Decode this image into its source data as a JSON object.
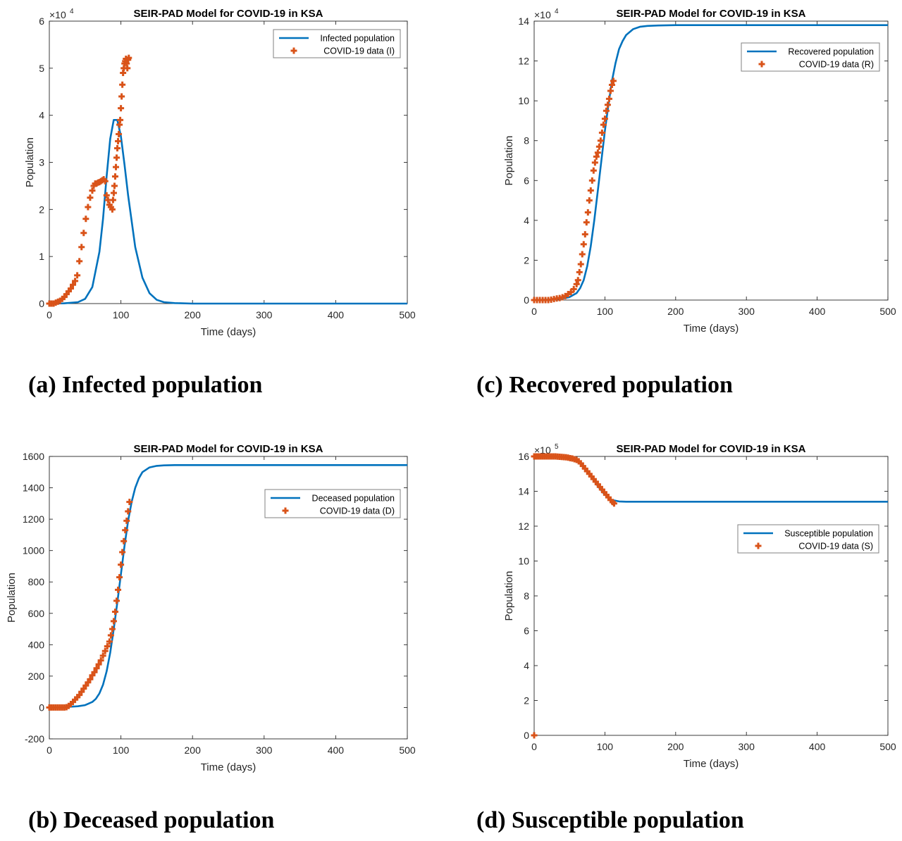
{
  "colors": {
    "model": "#0072BD",
    "data": "#D95319",
    "axis": "#262626",
    "box": "#808080"
  },
  "captions": {
    "a": "(a) Infected population",
    "b": "(b) Deceased population",
    "c": "(c) Recovered population",
    "d": "(d) Susceptible population"
  },
  "chart_data": [
    {
      "id": "a",
      "type": "line",
      "title": "SEIR-PAD Model for COVID-19 in KSA",
      "xlabel": "Time (days)",
      "ylabel": "Population",
      "exponent": "4",
      "xlim": [
        0,
        500
      ],
      "ylim": [
        0,
        6
      ],
      "xticks": [
        0,
        100,
        200,
        300,
        400,
        500
      ],
      "yticks": [
        0,
        1,
        2,
        3,
        4,
        5,
        6
      ],
      "legend_position": "top-right",
      "grid": false,
      "series": [
        {
          "name": "Infected population",
          "kind": "line",
          "x": [
            0,
            20,
            40,
            50,
            60,
            70,
            75,
            80,
            85,
            90,
            95,
            100,
            105,
            110,
            120,
            130,
            140,
            150,
            160,
            175,
            200,
            300,
            400,
            500
          ],
          "y": [
            0,
            0.005,
            0.03,
            0.1,
            0.35,
            1.1,
            1.8,
            2.7,
            3.5,
            3.9,
            3.9,
            3.55,
            2.95,
            2.3,
            1.2,
            0.55,
            0.22,
            0.08,
            0.03,
            0.01,
            0,
            0,
            0,
            0
          ]
        },
        {
          "name": "COVID-19 data (I)",
          "kind": "scatter",
          "x": [
            0,
            3,
            6,
            9,
            12,
            15,
            18,
            21,
            24,
            27,
            30,
            33,
            36,
            39,
            42,
            45,
            48,
            51,
            54,
            57,
            60,
            62,
            64,
            66,
            68,
            70,
            72,
            74,
            76,
            78,
            80,
            82,
            84,
            86,
            88,
            89,
            90,
            91,
            92,
            93,
            94,
            95,
            96,
            97,
            98,
            99,
            100,
            101,
            102,
            103,
            104,
            105,
            106,
            107,
            108,
            109,
            110,
            111
          ],
          "y": [
            0,
            0,
            0,
            0.02,
            0.04,
            0.06,
            0.1,
            0.14,
            0.2,
            0.26,
            0.32,
            0.4,
            0.48,
            0.6,
            0.9,
            1.2,
            1.5,
            1.8,
            2.05,
            2.25,
            2.4,
            2.5,
            2.55,
            2.55,
            2.57,
            2.58,
            2.6,
            2.62,
            2.64,
            2.6,
            2.3,
            2.2,
            2.1,
            2.05,
            2.0,
            2.2,
            2.35,
            2.5,
            2.7,
            2.9,
            3.1,
            3.3,
            3.45,
            3.6,
            3.8,
            3.9,
            4.15,
            4.4,
            4.65,
            4.9,
            5.0,
            5.1,
            5.15,
            5.2,
            5.1,
            5.0,
            5.18,
            5.22
          ]
        }
      ]
    },
    {
      "id": "c",
      "type": "line",
      "title": "SEIR-PAD Model for COVID-19 in KSA",
      "xlabel": "Time (days)",
      "ylabel": "Population",
      "exponent": "4",
      "xlim": [
        0,
        500
      ],
      "ylim": [
        0,
        14
      ],
      "xticks": [
        0,
        100,
        200,
        300,
        400,
        500
      ],
      "yticks": [
        0,
        2,
        4,
        6,
        8,
        10,
        12,
        14
      ],
      "legend_position": "top-right",
      "grid": false,
      "series": [
        {
          "name": "Recovered population",
          "kind": "line",
          "x": [
            0,
            20,
            40,
            50,
            60,
            65,
            70,
            75,
            80,
            85,
            90,
            95,
            100,
            105,
            110,
            115,
            120,
            125,
            130,
            140,
            150,
            160,
            175,
            200,
            300,
            400,
            500
          ],
          "y": [
            0,
            0.02,
            0.08,
            0.15,
            0.35,
            0.6,
            1.0,
            1.7,
            2.7,
            4.0,
            5.5,
            7.0,
            8.5,
            9.8,
            11.0,
            11.9,
            12.6,
            13.0,
            13.3,
            13.6,
            13.72,
            13.76,
            13.78,
            13.8,
            13.8,
            13.8,
            13.8
          ]
        },
        {
          "name": "COVID-19 data (R)",
          "kind": "scatter",
          "x": [
            0,
            4,
            8,
            12,
            16,
            20,
            24,
            28,
            32,
            36,
            40,
            44,
            48,
            52,
            56,
            60,
            62,
            64,
            66,
            68,
            70,
            72,
            74,
            76,
            78,
            80,
            82,
            84,
            86,
            88,
            90,
            92,
            94,
            96,
            98,
            100,
            102,
            104,
            106,
            108,
            110,
            112
          ],
          "y": [
            0,
            0,
            0,
            0,
            0,
            0,
            0.02,
            0.05,
            0.08,
            0.1,
            0.14,
            0.2,
            0.3,
            0.4,
            0.55,
            0.8,
            1.0,
            1.4,
            1.8,
            2.3,
            2.8,
            3.3,
            3.9,
            4.4,
            5.0,
            5.5,
            6.0,
            6.5,
            6.9,
            7.2,
            7.4,
            7.7,
            8.0,
            8.4,
            8.8,
            9.1,
            9.5,
            9.8,
            10.1,
            10.5,
            10.8,
            11.0
          ]
        }
      ]
    },
    {
      "id": "b",
      "type": "line",
      "title": "SEIR-PAD Model for COVID-19 in KSA",
      "xlabel": "Time (days)",
      "ylabel": "Population",
      "exponent": "",
      "xlim": [
        0,
        500
      ],
      "ylim": [
        -200,
        1600
      ],
      "xticks": [
        0,
        100,
        200,
        300,
        400,
        500
      ],
      "yticks": [
        -200,
        0,
        200,
        400,
        600,
        800,
        1000,
        1200,
        1400,
        1600
      ],
      "legend_position": "right",
      "grid": false,
      "series": [
        {
          "name": "Deceased population",
          "kind": "line",
          "x": [
            0,
            20,
            40,
            50,
            60,
            65,
            70,
            75,
            80,
            85,
            90,
            95,
            100,
            105,
            110,
            115,
            120,
            125,
            130,
            140,
            150,
            160,
            175,
            200,
            300,
            400,
            500
          ],
          "y": [
            0,
            2,
            8,
            15,
            35,
            55,
            90,
            145,
            230,
            350,
            500,
            670,
            850,
            1030,
            1190,
            1310,
            1400,
            1460,
            1500,
            1530,
            1540,
            1543,
            1545,
            1545,
            1545,
            1545,
            1545
          ]
        },
        {
          "name": "COVID-19 data (D)",
          "kind": "scatter",
          "x": [
            0,
            3,
            6,
            9,
            12,
            15,
            18,
            21,
            24,
            27,
            30,
            33,
            36,
            39,
            42,
            45,
            48,
            51,
            54,
            57,
            60,
            63,
            66,
            69,
            72,
            75,
            78,
            81,
            84,
            86,
            88,
            90,
            92,
            94,
            96,
            98,
            100,
            102,
            104,
            106,
            108,
            110,
            112
          ],
          "y": [
            0,
            0,
            0,
            0,
            0,
            0,
            0,
            0,
            2,
            10,
            22,
            35,
            50,
            65,
            80,
            100,
            120,
            140,
            160,
            180,
            205,
            225,
            250,
            275,
            300,
            330,
            360,
            390,
            420,
            460,
            500,
            550,
            610,
            680,
            750,
            830,
            910,
            990,
            1060,
            1130,
            1190,
            1250,
            1310
          ]
        }
      ]
    },
    {
      "id": "d",
      "type": "line",
      "title": "SEIR-PAD Model for COVID-19 in KSA",
      "xlabel": "Time (days)",
      "ylabel": "Population",
      "exponent": "5",
      "xlim": [
        0,
        500
      ],
      "ylim": [
        0,
        16
      ],
      "xticks": [
        0,
        100,
        200,
        300,
        400,
        500
      ],
      "yticks": [
        0,
        2,
        4,
        6,
        8,
        10,
        12,
        14,
        16
      ],
      "legend_position": "right",
      "grid": false,
      "series": [
        {
          "name": "Susceptible population",
          "kind": "line",
          "x": [
            0,
            20,
            40,
            50,
            60,
            70,
            80,
            90,
            100,
            110,
            120,
            130,
            150,
            200,
            300,
            400,
            500
          ],
          "y": [
            16,
            15.99,
            15.95,
            15.9,
            15.75,
            15.4,
            14.9,
            14.3,
            13.8,
            13.5,
            13.42,
            13.4,
            13.4,
            13.4,
            13.4,
            13.4,
            13.4
          ]
        },
        {
          "name": "COVID-19 data (S)",
          "kind": "scatter",
          "x": [
            0,
            0,
            3,
            6,
            9,
            12,
            15,
            18,
            21,
            24,
            27,
            30,
            33,
            36,
            39,
            42,
            45,
            48,
            51,
            54,
            57,
            60,
            63,
            66,
            69,
            72,
            75,
            78,
            81,
            84,
            87,
            90,
            93,
            96,
            99,
            102,
            105,
            108,
            111,
            113
          ],
          "y": [
            0,
            16,
            16,
            16,
            16,
            16,
            16,
            16,
            16,
            16,
            16,
            16,
            15.99,
            15.98,
            15.97,
            15.96,
            15.95,
            15.93,
            15.9,
            15.88,
            15.84,
            15.8,
            15.72,
            15.6,
            15.45,
            15.3,
            15.15,
            15.0,
            14.85,
            14.7,
            14.55,
            14.4,
            14.25,
            14.1,
            13.95,
            13.8,
            13.65,
            13.5,
            13.38,
            13.3
          ]
        }
      ]
    }
  ]
}
